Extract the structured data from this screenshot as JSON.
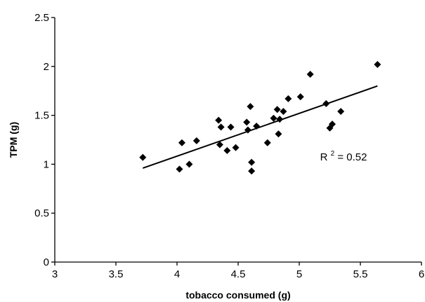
{
  "chart_data": {
    "type": "scatter",
    "title": "",
    "xlabel": "tobacco consumed (g)",
    "ylabel": "TPM (g)",
    "xlim": [
      3,
      6
    ],
    "ylim": [
      0,
      2.5
    ],
    "x_ticks": [
      "3",
      "3.5",
      "4",
      "4.5",
      "5",
      "5.5",
      "6"
    ],
    "y_ticks": [
      "0",
      "0.5",
      "1",
      "1.5",
      "2",
      "2.5"
    ],
    "grid": false,
    "series": [
      {
        "points": [
          [
            3.72,
            1.07
          ],
          [
            4.02,
            0.95
          ],
          [
            4.04,
            1.22
          ],
          [
            4.1,
            1.0
          ],
          [
            4.16,
            1.24
          ],
          [
            4.34,
            1.45
          ],
          [
            4.35,
            1.2
          ],
          [
            4.36,
            1.38
          ],
          [
            4.41,
            1.14
          ],
          [
            4.44,
            1.38
          ],
          [
            4.48,
            1.17
          ],
          [
            4.57,
            1.43
          ],
          [
            4.58,
            1.35
          ],
          [
            4.6,
            1.59
          ],
          [
            4.61,
            1.02
          ],
          [
            4.61,
            0.93
          ],
          [
            4.65,
            1.39
          ],
          [
            4.74,
            1.22
          ],
          [
            4.79,
            1.47
          ],
          [
            4.82,
            1.56
          ],
          [
            4.83,
            1.31
          ],
          [
            4.84,
            1.46
          ],
          [
            4.87,
            1.54
          ],
          [
            4.91,
            1.67
          ],
          [
            5.01,
            1.69
          ],
          [
            5.09,
            1.92
          ],
          [
            5.22,
            1.62
          ],
          [
            5.25,
            1.37
          ],
          [
            5.27,
            1.41
          ],
          [
            5.34,
            1.54
          ],
          [
            5.64,
            2.02
          ]
        ]
      }
    ],
    "trendline": {
      "x": [
        3.72,
        5.64
      ],
      "y": [
        0.96,
        1.8
      ]
    },
    "annotation": {
      "r2_label": "R",
      "r2_superscript": "2",
      "r2_value": " = 0.52"
    }
  }
}
